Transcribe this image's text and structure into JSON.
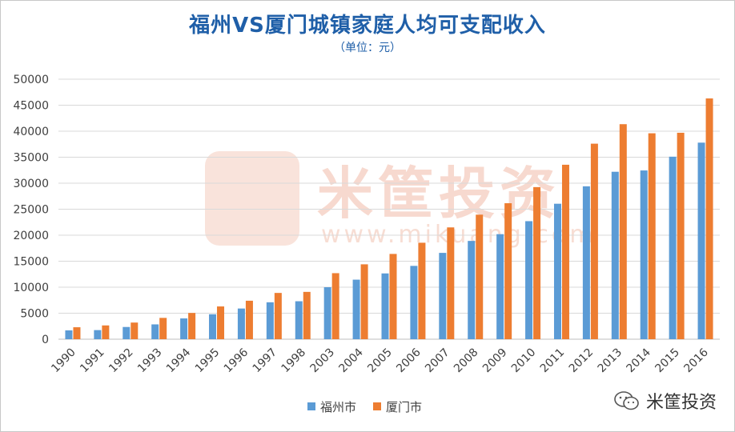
{
  "chart_data": {
    "type": "bar",
    "title": "福州VS厦门城镇家庭人均可支配收入",
    "subtitle": "（单位：元）",
    "categories": [
      "1990",
      "1991",
      "1992",
      "1993",
      "1994",
      "1995",
      "1996",
      "1997",
      "1998",
      "2003",
      "2004",
      "2005",
      "2006",
      "2007",
      "2008",
      "2009",
      "2010",
      "2011",
      "2012",
      "2013",
      "2014",
      "2015",
      "2016"
    ],
    "series": [
      {
        "name": "福州市",
        "color": "#5b9bd5",
        "values": [
          1700,
          1750,
          2350,
          2850,
          4000,
          4800,
          5900,
          7100,
          7300,
          10000,
          11450,
          12650,
          14100,
          16600,
          18900,
          20200,
          22700,
          26050,
          29400,
          32200,
          32450,
          35100,
          37800
        ]
      },
      {
        "name": "厦门市",
        "color": "#ed7d31",
        "values": [
          2300,
          2650,
          3200,
          4100,
          5050,
          6300,
          7400,
          8900,
          9100,
          12700,
          14400,
          16400,
          18550,
          21500,
          23950,
          26150,
          29250,
          33550,
          37600,
          41350,
          39600,
          39700,
          46300
        ]
      }
    ],
    "ylim": [
      0,
      50000
    ],
    "yticks": [
      0,
      5000,
      10000,
      15000,
      20000,
      25000,
      30000,
      35000,
      40000,
      45000,
      50000
    ],
    "grid": true,
    "legend_position": "bottom"
  },
  "watermark": {
    "text": "米筐投资",
    "url": "www.mikuang.com"
  },
  "brand": {
    "label": "米筐投资",
    "icon": "wechat-icon"
  }
}
